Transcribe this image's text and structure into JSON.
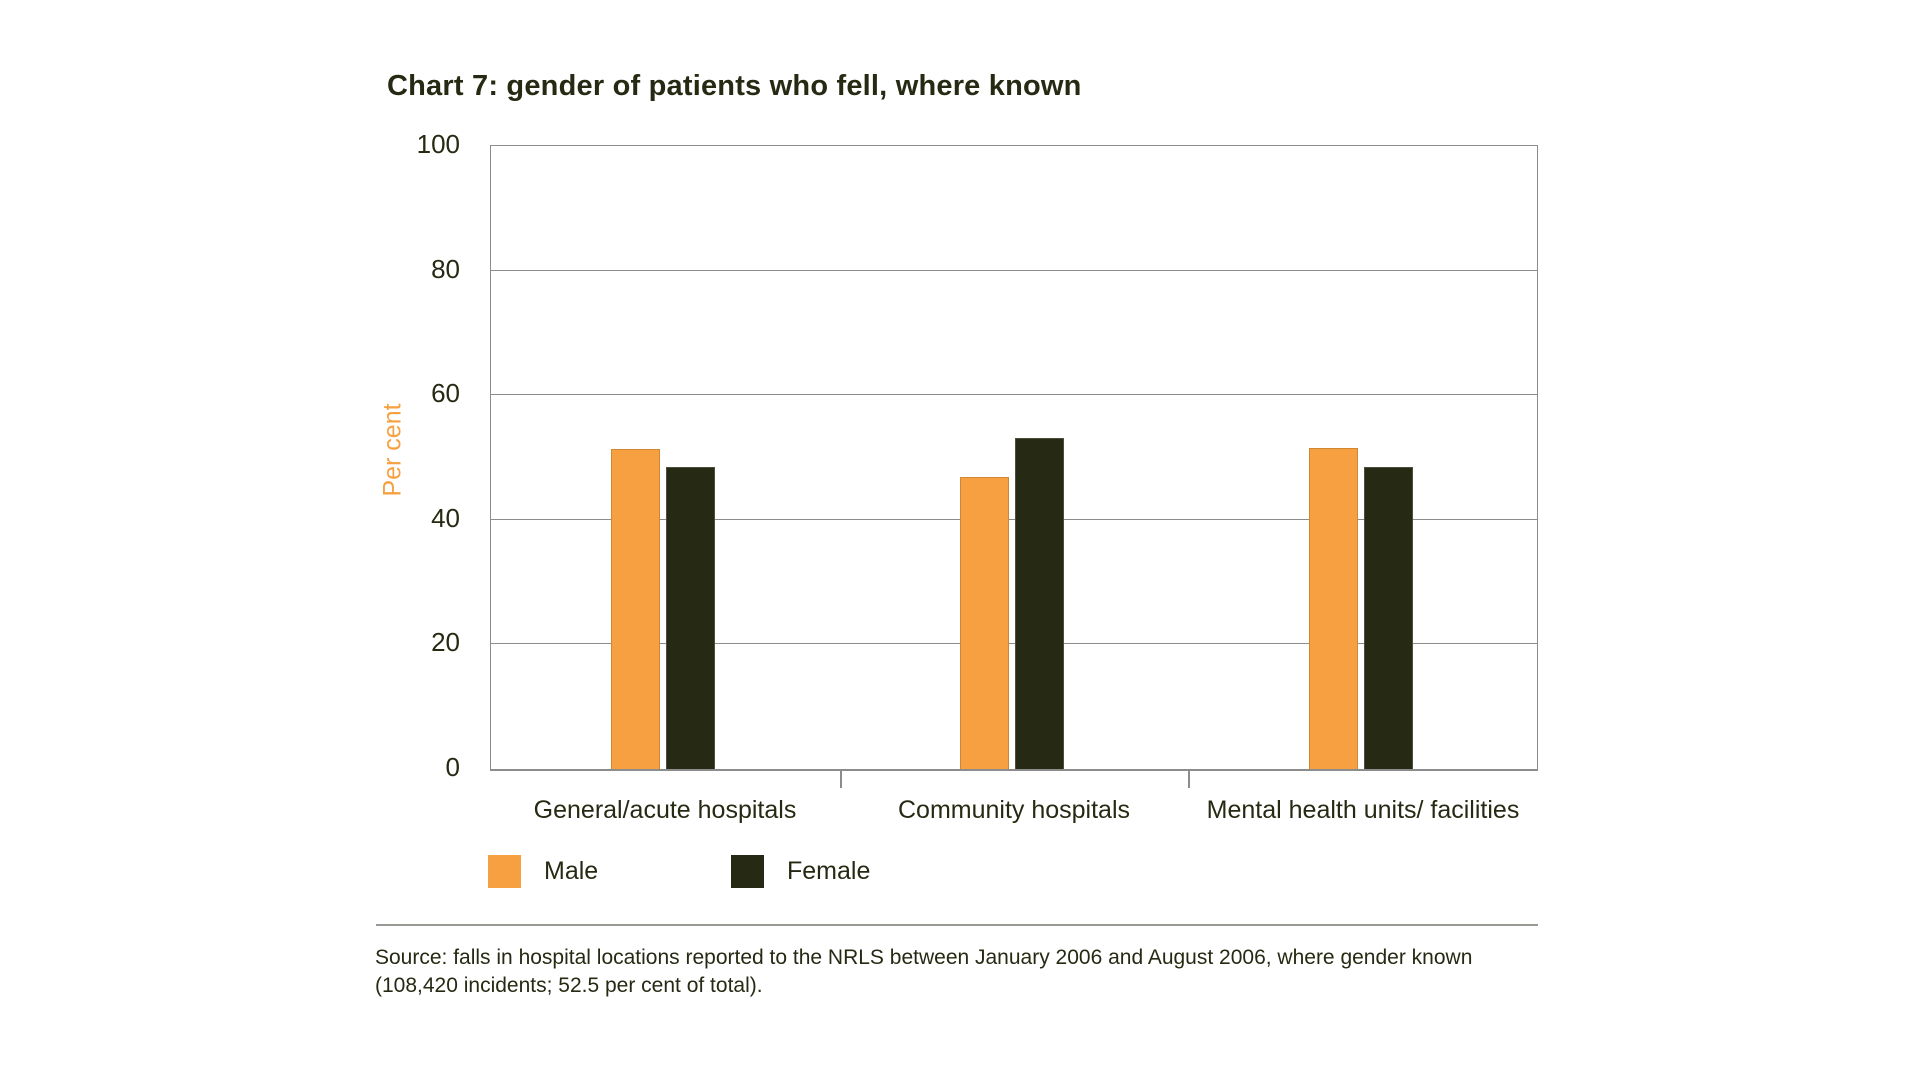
{
  "title": "Chart 7: gender of patients who fell, where known",
  "chart_data": {
    "type": "bar",
    "categories": [
      "General/acute hospitals",
      "Community hospitals",
      "Mental health units/ facilities"
    ],
    "series": [
      {
        "name": "Male",
        "color": "#f6a041",
        "values": [
          51.4,
          46.9,
          51.5
        ]
      },
      {
        "name": "Female",
        "color": "#262a15",
        "values": [
          48.5,
          53.1,
          48.5
        ]
      }
    ],
    "title": "Chart 7: gender of patients who fell, where known",
    "xlabel": "",
    "ylabel": "Per cent",
    "ylim": [
      0,
      100
    ],
    "y_ticks": [
      0,
      20,
      40,
      60,
      80,
      100
    ],
    "grid": true,
    "legend_position": "bottom"
  },
  "legend": {
    "male_label": "Male",
    "female_label": "Female"
  },
  "source": {
    "line1": "Source: falls in hospital locations reported to the NRLS between January 2006 and August 2006, where gender known",
    "line2": "(108,420 incidents; 52.5 per cent of total)."
  },
  "colors": {
    "male": "#f6a041",
    "female": "#262a15",
    "text": "#262a12",
    "gridline": "#8c8c8c",
    "rule": "#9a9a94"
  }
}
